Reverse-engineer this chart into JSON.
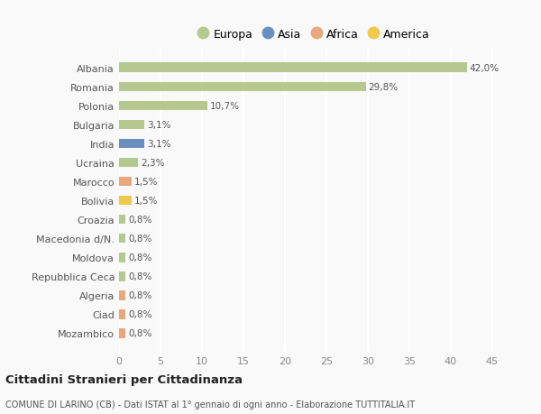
{
  "categories": [
    "Albania",
    "Romania",
    "Polonia",
    "Bulgaria",
    "India",
    "Ucraina",
    "Marocco",
    "Bolivia",
    "Croazia",
    "Macedonia d/N.",
    "Moldova",
    "Repubblica Ceca",
    "Algeria",
    "Ciad",
    "Mozambico"
  ],
  "values": [
    42.0,
    29.8,
    10.7,
    3.1,
    3.1,
    2.3,
    1.5,
    1.5,
    0.8,
    0.8,
    0.8,
    0.8,
    0.8,
    0.8,
    0.8
  ],
  "labels": [
    "42,0%",
    "29,8%",
    "10,7%",
    "3,1%",
    "3,1%",
    "2,3%",
    "1,5%",
    "1,5%",
    "0,8%",
    "0,8%",
    "0,8%",
    "0,8%",
    "0,8%",
    "0,8%",
    "0,8%"
  ],
  "colors": [
    "#b5c98e",
    "#b5c98e",
    "#b5c98e",
    "#b5c98e",
    "#6a8fbf",
    "#b5c98e",
    "#e8a87c",
    "#f0c84a",
    "#b5c98e",
    "#b5c98e",
    "#b5c98e",
    "#b5c98e",
    "#e8a87c",
    "#e8a87c",
    "#e8a87c"
  ],
  "legend": [
    {
      "label": "Europa",
      "color": "#b5c98e"
    },
    {
      "label": "Asia",
      "color": "#6a8fbf"
    },
    {
      "label": "Africa",
      "color": "#e8a87c"
    },
    {
      "label": "America",
      "color": "#f0c84a"
    }
  ],
  "xlim": [
    0,
    47
  ],
  "xticks": [
    0,
    5,
    10,
    15,
    20,
    25,
    30,
    35,
    40,
    45
  ],
  "title1": "Cittadini Stranieri per Cittadinanza",
  "title2": "COMUNE DI LARINO (CB) - Dati ISTAT al 1° gennaio di ogni anno - Elaborazione TUTTITALIA.IT",
  "bg_color": "#f9f9f9",
  "grid_color": "#ffffff",
  "bar_height": 0.5
}
